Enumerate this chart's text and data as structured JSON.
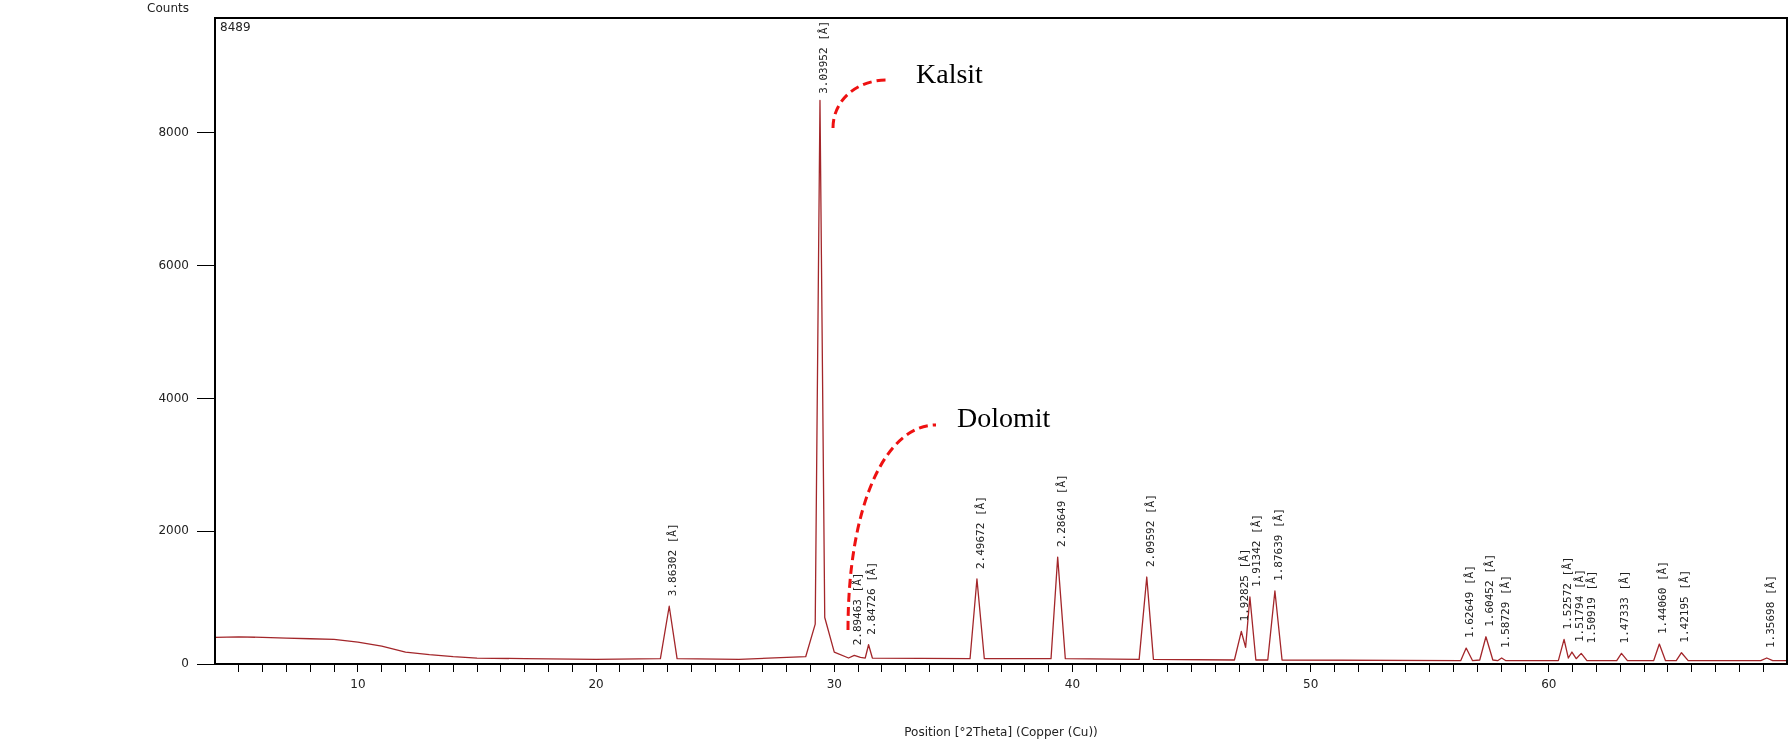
{
  "chart_data": {
    "type": "line",
    "xlabel": "Position [°2Theta] (Copper (Cu))",
    "ylabel": "Counts",
    "xlim": [
      4,
      70
    ],
    "ylim": [
      0,
      9730
    ],
    "xticks": [
      {
        "value": 5,
        "label": null
      },
      {
        "value": 6,
        "label": null
      },
      {
        "value": 7,
        "label": null
      },
      {
        "value": 8,
        "label": null
      },
      {
        "value": 9,
        "label": null
      },
      10,
      {
        "value": 11,
        "label": null
      },
      {
        "value": 12,
        "label": null
      },
      {
        "value": 13,
        "label": null
      },
      {
        "value": 14,
        "label": null
      },
      {
        "value": 15,
        "label": null
      },
      {
        "value": 16,
        "label": null
      },
      {
        "value": 17,
        "label": null
      },
      {
        "value": 18,
        "label": null
      },
      {
        "value": 19,
        "label": null
      },
      20,
      {
        "value": 21,
        "label": null
      },
      {
        "value": 22,
        "label": null
      },
      {
        "value": 23,
        "label": null
      },
      {
        "value": 24,
        "label": null
      },
      {
        "value": 25,
        "label": null
      },
      {
        "value": 26,
        "label": null
      },
      {
        "value": 27,
        "label": null
      },
      {
        "value": 28,
        "label": null
      },
      {
        "value": 29,
        "label": null
      },
      30,
      {
        "value": 31,
        "label": null
      },
      {
        "value": 32,
        "label": null
      },
      {
        "value": 33,
        "label": null
      },
      {
        "value": 34,
        "label": null
      },
      {
        "value": 35,
        "label": null
      },
      {
        "value": 36,
        "label": null
      },
      {
        "value": 37,
        "label": null
      },
      {
        "value": 38,
        "label": null
      },
      {
        "value": 39,
        "label": null
      },
      40,
      {
        "value": 41,
        "label": null
      },
      {
        "value": 42,
        "label": null
      },
      {
        "value": 43,
        "label": null
      },
      {
        "value": 44,
        "label": null
      },
      {
        "value": 45,
        "label": null
      },
      {
        "value": 46,
        "label": null
      },
      {
        "value": 47,
        "label": null
      },
      {
        "value": 48,
        "label": null
      },
      {
        "value": 49,
        "label": null
      },
      50,
      {
        "value": 51,
        "label": null
      },
      {
        "value": 52,
        "label": null
      },
      {
        "value": 53,
        "label": null
      },
      {
        "value": 54,
        "label": null
      },
      {
        "value": 55,
        "label": null
      },
      {
        "value": 56,
        "label": null
      },
      {
        "value": 57,
        "label": null
      },
      {
        "value": 58,
        "label": null
      },
      {
        "value": 59,
        "label": null
      },
      60,
      {
        "value": 61,
        "label": null
      },
      {
        "value": 62,
        "label": null
      },
      {
        "value": 63,
        "label": null
      },
      {
        "value": 64,
        "label": null
      },
      {
        "value": 65,
        "label": null
      },
      {
        "value": 66,
        "label": null
      },
      {
        "value": 67,
        "label": null
      },
      {
        "value": 68,
        "label": null
      },
      {
        "value": 69,
        "label": null
      }
    ],
    "yticks": [
      0,
      2000,
      4000,
      6000,
      8000
    ],
    "grid": false,
    "legend": false,
    "marker": "none",
    "line_style": "solid",
    "series": [
      {
        "color": "#a3262a",
        "x": [
          4,
          5,
          6,
          7,
          8,
          9,
          10,
          11,
          12,
          13,
          14,
          15,
          17,
          20,
          22.7,
          23.07,
          23.4,
          26,
          28.8,
          29.2,
          29.4,
          29.6,
          30,
          30.6,
          30.84,
          31.1,
          31.3,
          31.44,
          31.6,
          35.7,
          35.99,
          36.3,
          39.1,
          39.38,
          39.7,
          42.8,
          43.12,
          43.4,
          46.8,
          47.09,
          47.27,
          47.45,
          47.7,
          48.2,
          48.5,
          48.8,
          56.3,
          56.53,
          56.8,
          57.1,
          57.36,
          57.65,
          57.85,
          58.02,
          58.2,
          60.4,
          60.64,
          60.82,
          60.97,
          61.15,
          61.36,
          61.6,
          62.85,
          63.05,
          63.3,
          64.4,
          64.64,
          64.9,
          65.35,
          65.57,
          65.85,
          68.9,
          69.15,
          69.4,
          70
        ],
        "values": [
          400,
          410,
          400,
          390,
          380,
          370,
          330,
          270,
          180,
          140,
          110,
          90,
          80,
          70,
          80,
          870,
          80,
          70,
          110,
          600,
          8489,
          700,
          180,
          90,
          130,
          100,
          90,
          290,
          90,
          80,
          1280,
          80,
          80,
          1610,
          80,
          70,
          1310,
          70,
          60,
          490,
          250,
          1010,
          60,
          60,
          1100,
          60,
          50,
          240,
          50,
          60,
          410,
          60,
          50,
          90,
          50,
          50,
          370,
          90,
          180,
          80,
          160,
          50,
          50,
          160,
          50,
          50,
          300,
          50,
          50,
          170,
          50,
          50,
          90,
          50,
          50
        ]
      }
    ],
    "annotations": [
      "8489",
      "Kalsit",
      "Dolomit",
      {
        "text": "3.86302 [Å]",
        "x": 23.07,
        "y": 870
      },
      {
        "text": "3.03952 [Å]",
        "x": 29.4,
        "y": 8489
      },
      {
        "text": "2.89463 [Å]",
        "x": 30.84,
        "y": 130
      },
      {
        "text": "2.84726 [Å]",
        "x": 31.44,
        "y": 290
      },
      {
        "text": "2.49672 [Å]",
        "x": 35.99,
        "y": 1280
      },
      {
        "text": "2.28649 [Å]",
        "x": 39.38,
        "y": 1610
      },
      {
        "text": "2.09592 [Å]",
        "x": 43.12,
        "y": 1310
      },
      {
        "text": "1.92825 [Å]",
        "x": 47.09,
        "y": 490
      },
      {
        "text": "1.91342 [Å]",
        "x": 47.45,
        "y": 1010
      },
      {
        "text": "1.87639 [Å]",
        "x": 48.5,
        "y": 1100
      },
      {
        "text": "1.62649 [Å]",
        "x": 56.53,
        "y": 240
      },
      {
        "text": "1.60452 [Å]",
        "x": 57.36,
        "y": 410
      },
      {
        "text": "1.58729 [Å]",
        "x": 58.02,
        "y": 90
      },
      {
        "text": "1.52572 [Å]",
        "x": 60.64,
        "y": 370
      },
      {
        "text": "1.51794 [Å]",
        "x": 60.97,
        "y": 180
      },
      {
        "text": "1.50919 [Å]",
        "x": 61.36,
        "y": 160
      },
      {
        "text": "1.47333 [Å]",
        "x": 63.05,
        "y": 160
      },
      {
        "text": "1.44060 [Å]",
        "x": 64.64,
        "y": 300
      },
      {
        "text": "1.42195 [Å]",
        "x": 65.57,
        "y": 170
      },
      {
        "text": "1.35698 [Å]",
        "x": 69.15,
        "y": 90
      }
    ]
  }
}
